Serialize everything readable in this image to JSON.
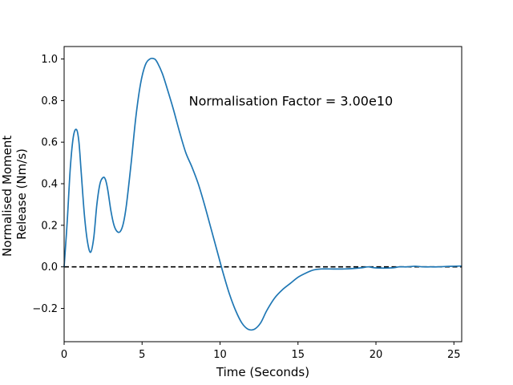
{
  "chart_data": {
    "type": "line",
    "title": "",
    "xlabel": "Time (Seconds)",
    "ylabel": "Normalised Moment Release (Nm/s)",
    "ylabel_lines": [
      "Normalised Moment",
      "Release (Nm/s)"
    ],
    "xlim": [
      0,
      25.5
    ],
    "ylim": [
      -0.36,
      1.06
    ],
    "x_ticks": [
      0,
      5,
      10,
      15,
      20,
      25
    ],
    "y_ticks": [
      -0.2,
      0.0,
      0.2,
      0.4,
      0.6,
      0.8,
      1.0
    ],
    "x_tick_labels": [
      "0",
      "5",
      "10",
      "15",
      "20",
      "25"
    ],
    "y_tick_labels": [
      "−0.2",
      "0.0",
      "0.2",
      "0.4",
      "0.6",
      "0.8",
      "1.0"
    ],
    "grid": false,
    "annotation": "Normalisation Factor = 3.00e10",
    "reference_line": {
      "y": 0,
      "style": "dashed",
      "color": "#000000"
    },
    "colors": {
      "series": "#1f77b4"
    },
    "series": [
      {
        "x": [
          0,
          0.2,
          0.4,
          0.6,
          0.8,
          0.95,
          1.1,
          1.3,
          1.5,
          1.7,
          1.9,
          2.1,
          2.3,
          2.5,
          2.65,
          2.8,
          3.0,
          3.2,
          3.4,
          3.6,
          3.8,
          4.0,
          4.3,
          4.6,
          4.9,
          5.2,
          5.5,
          5.8,
          6.0,
          6.3,
          6.6,
          7.0,
          7.4,
          7.8,
          8.2,
          8.6,
          9.0,
          9.4,
          9.8,
          10.2,
          10.6,
          11.0,
          11.4,
          11.8,
          12.2,
          12.6,
          13.0,
          13.5,
          14.0,
          14.5,
          15.0,
          15.5,
          16.0,
          16.5,
          17.0,
          18.0,
          19.0,
          19.5,
          20.0,
          21.0,
          21.5,
          22.0,
          22.5,
          23.0,
          23.5,
          24.0,
          24.5,
          25.0,
          25.5
        ],
        "y": [
          0.0,
          0.22,
          0.48,
          0.63,
          0.66,
          0.6,
          0.45,
          0.25,
          0.12,
          0.07,
          0.14,
          0.3,
          0.4,
          0.43,
          0.42,
          0.37,
          0.27,
          0.2,
          0.17,
          0.17,
          0.21,
          0.3,
          0.5,
          0.72,
          0.88,
          0.97,
          1.0,
          1.0,
          0.98,
          0.93,
          0.86,
          0.76,
          0.65,
          0.55,
          0.48,
          0.4,
          0.3,
          0.19,
          0.08,
          -0.03,
          -0.13,
          -0.21,
          -0.27,
          -0.3,
          -0.3,
          -0.27,
          -0.21,
          -0.15,
          -0.11,
          -0.08,
          -0.05,
          -0.03,
          -0.015,
          -0.01,
          -0.01,
          -0.01,
          -0.005,
          0.0,
          -0.005,
          -0.005,
          0.0,
          0.0,
          0.003,
          0.0,
          0.0,
          0.0,
          0.002,
          0.003,
          0.004
        ]
      }
    ]
  }
}
